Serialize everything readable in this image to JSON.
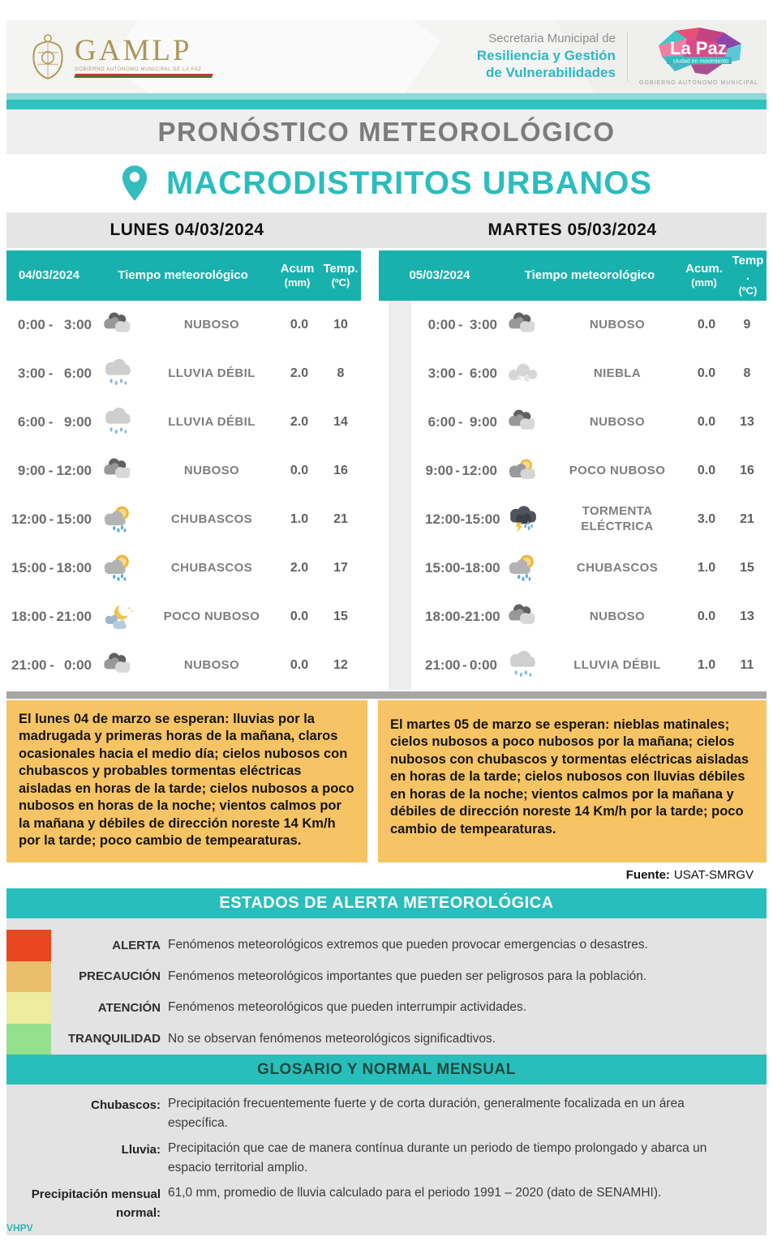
{
  "header": {
    "gamlp": {
      "acronym": "GAMLP",
      "subtitle": "GOBIERNO AUTÓNOMO MUNICIPAL DE LA PAZ"
    },
    "secretaria": {
      "line1": "Secretaria Municipal de",
      "line2": "Resiliencia y Gestión",
      "line3": "de Vulnerabilidades"
    },
    "lapaz": {
      "title": "La Paz",
      "tagline": "ciudad en movimiento",
      "subtitle": "GOBIERNO AUTÓNOMO MUNICIPAL"
    }
  },
  "title": "PRONÓSTICO METEOROLÓGICO",
  "subtitle": "MACRODISTRITOS URBANOS",
  "time_separator": "-",
  "forecast_days": [
    {
      "day_header": "LUNES 04/03/2024",
      "columns": {
        "date": "04/03/2024",
        "weather": "Tiempo meteorológico",
        "acum": "Acum",
        "acum_unit": "(mm)",
        "temp": "Temp.",
        "temp_unit": "(ºC)"
      },
      "rows": [
        {
          "start": "0:00",
          "end": "3:00",
          "icon": "cloudy",
          "condition": "NUBOSO",
          "acum": "0.0",
          "temp": "10"
        },
        {
          "start": "3:00",
          "end": "6:00",
          "icon": "rain",
          "condition": "LLUVIA DÉBIL",
          "acum": "2.0",
          "temp": "8"
        },
        {
          "start": "6:00",
          "end": "9:00",
          "icon": "rain",
          "condition": "LLUVIA DÉBIL",
          "acum": "2.0",
          "temp": "14"
        },
        {
          "start": "9:00",
          "end": "12:00",
          "icon": "cloudy",
          "condition": "NUBOSO",
          "acum": "0.0",
          "temp": "16"
        },
        {
          "start": "12:00",
          "end": "15:00",
          "icon": "sun-showers",
          "condition": "CHUBASCOS",
          "acum": "1.0",
          "temp": "21"
        },
        {
          "start": "15:00",
          "end": "18:00",
          "icon": "sun-showers",
          "condition": "CHUBASCOS",
          "acum": "2.0",
          "temp": "17"
        },
        {
          "start": "18:00",
          "end": "21:00",
          "icon": "moon-clouds",
          "condition": "POCO NUBOSO",
          "acum": "0.0",
          "temp": "15"
        },
        {
          "start": "21:00",
          "end": "0:00",
          "icon": "cloudy",
          "condition": "NUBOSO",
          "acum": "0.0",
          "temp": "12"
        }
      ],
      "summary": "El lunes 04 de marzo se esperan: lluvias  por la madrugada y primeras horas de la mañana, claros ocasionales hacia el medio día; cielos nubosos con chubascos  y probables tormentas eléctricas aisladas en horas de la tarde; cielos nubosos a poco nubosos en horas de la noche; vientos calmos por la mañana y débiles de dirección noreste 14 Km/h por la tarde; poco cambio de tempearaturas."
    },
    {
      "day_header": "MARTES 05/03/2024",
      "columns": {
        "date": "05/03/2024",
        "weather": "Tiempo  meteorológico",
        "acum": "Acum.",
        "acum_unit": "(mm)",
        "temp": "Temp .",
        "temp_unit": "(ºC)"
      },
      "rows": [
        {
          "start": "0:00",
          "end": "3:00",
          "icon": "cloudy",
          "condition": "NUBOSO",
          "acum": "0.0",
          "temp": "9"
        },
        {
          "start": "3:00",
          "end": "6:00",
          "icon": "fog",
          "condition": "NIEBLA",
          "acum": "0.0",
          "temp": "8"
        },
        {
          "start": "6:00",
          "end": "9:00",
          "icon": "cloudy",
          "condition": "NUBOSO",
          "acum": "0.0",
          "temp": "13"
        },
        {
          "start": "9:00",
          "end": "12:00",
          "icon": "sun-cloud",
          "condition": "POCO NUBOSO",
          "acum": "0.0",
          "temp": "16"
        },
        {
          "start": "12:00",
          "end": "15:00",
          "icon": "storm",
          "condition": "TORMENTA ELÉCTRICA",
          "acum": "3.0",
          "temp": "21"
        },
        {
          "start": "15:00",
          "end": "18:00",
          "icon": "sun-showers",
          "condition": "CHUBASCOS",
          "acum": "1.0",
          "temp": "15"
        },
        {
          "start": "18:00",
          "end": "21:00",
          "icon": "cloudy",
          "condition": "NUBOSO",
          "acum": "0.0",
          "temp": "13"
        },
        {
          "start": "21:00",
          "end": "0:00",
          "icon": "rain",
          "condition": "LLUVIA DÉBIL",
          "acum": "1.0",
          "temp": "11"
        }
      ],
      "summary": "El martes 05 de marzo se esperan: nieblas matinales; cielos nubosos a poco nubosos por la mañana; cielos nubosos con chubascos y tormentas eléctricas aisladas en horas de la tarde; cielos nubosos con lluvias débiles en horas de la noche; vientos calmos por la mañana y débiles de dirección noreste 14 Km/h por la tarde; poco cambio de tempearaturas."
    }
  ],
  "fuente": {
    "label": "Fuente:",
    "value": "USAT-SMRGV"
  },
  "alerts": {
    "title": "ESTADOS DE ALERTA METEOROLÓGICA",
    "levels": [
      {
        "name": "ALERTA",
        "color": "#e7461f",
        "description": "Fenómenos meteorológicos extremos que pueden provocar emergencias o desastres."
      },
      {
        "name": "PRECAUCIÓN",
        "color": "#e9bf6e",
        "description": "Fenómenos meteorológicos importantes que pueden ser peligrosos para la población."
      },
      {
        "name": "ATENCIÓN",
        "color": "#eeec9f",
        "description": "Fenómenos meteorológicos que pueden interrumpir actividades."
      },
      {
        "name": "TRANQUILIDAD",
        "color": "#95e08d",
        "description": "No se observan fenómenos meteorológicos significadtivos."
      }
    ]
  },
  "glossary": {
    "title": "GLOSARIO Y NORMAL MENSUAL",
    "terms": [
      {
        "term": "Chubascos:",
        "definition": "Precipitación frecuentemente fuerte y de corta duración, generalmente focalizada en un área específica."
      },
      {
        "term": "Lluvia:",
        "definition": "Precipitación que cae de manera contínua durante un periodo de tiempo prolongado y abarca un espacio territorial amplio."
      },
      {
        "term": "Precipitación mensual normal:",
        "definition": "61,0 mm, promedio de lluvia calculado para el periodo 1991 – 2020 (dato de SENAMHI)."
      }
    ]
  },
  "footer": {
    "initials": "VHPV"
  },
  "colors": {
    "teal_accent": "#2ec2c0",
    "table_header_teal": "#18b1ae",
    "band_teal": "#28bebb",
    "summary_orange": "#f6c464",
    "title_gray": "#7c7c7c",
    "panel_gray": "#e3e3e3"
  }
}
